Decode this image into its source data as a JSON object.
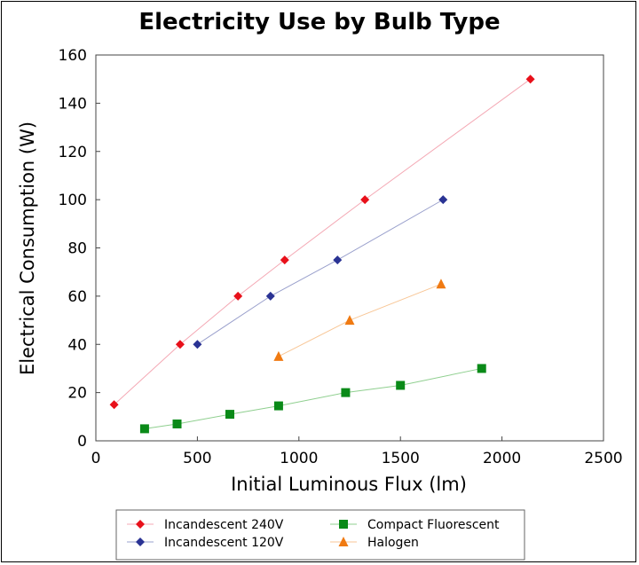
{
  "chart_data": {
    "type": "scatter",
    "title": "Electricity Use by Bulb Type",
    "xlabel": "Initial Luminous Flux (lm)",
    "ylabel": "Electrical Consumption (W)",
    "xlim": [
      0,
      2500
    ],
    "ylim": [
      0,
      160
    ],
    "xticks": [
      0,
      500,
      1000,
      1500,
      2000,
      2500
    ],
    "yticks": [
      0,
      20,
      40,
      60,
      80,
      100,
      120,
      140,
      160
    ],
    "grid": false,
    "legend_position": "bottom",
    "series": [
      {
        "name": "Incandescent 240V",
        "marker": "diamond",
        "color": "#e8101a",
        "line_color": "#f4a8b4",
        "points": [
          [
            90,
            15
          ],
          [
            415,
            40
          ],
          [
            700,
            60
          ],
          [
            930,
            75
          ],
          [
            1325,
            100
          ],
          [
            2140,
            150
          ]
        ]
      },
      {
        "name": "Incandescent 120V",
        "marker": "diamond",
        "color": "#2a3394",
        "line_color": "#9aa0cc",
        "points": [
          [
            500,
            40
          ],
          [
            860,
            60
          ],
          [
            1190,
            75
          ],
          [
            1710,
            100
          ]
        ]
      },
      {
        "name": "Compact Fluorescent",
        "marker": "square",
        "color": "#0a8a18",
        "line_color": "#8fcf8f",
        "points": [
          [
            240,
            5
          ],
          [
            400,
            7
          ],
          [
            660,
            11
          ],
          [
            900,
            14.5
          ],
          [
            1230,
            20
          ],
          [
            1500,
            23
          ],
          [
            1900,
            30
          ]
        ]
      },
      {
        "name": "Halogen",
        "marker": "triangle",
        "color": "#f07a12",
        "line_color": "#f8c696",
        "points": [
          [
            900,
            35
          ],
          [
            1250,
            50
          ],
          [
            1700,
            65
          ]
        ]
      }
    ]
  }
}
